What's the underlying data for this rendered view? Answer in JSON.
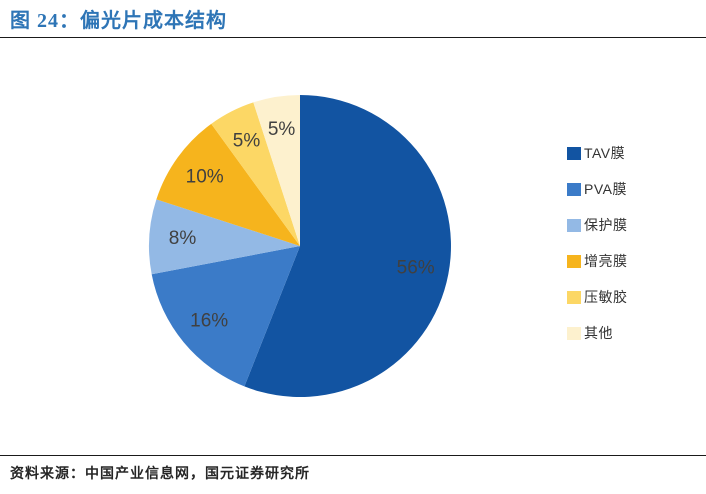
{
  "figure": {
    "title": "图 24：偏光片成本结构",
    "source": "资料来源：中国产业信息网，国元证券研究所"
  },
  "colors": {
    "title_text": "#2E75B6",
    "divider": "#1a1a1a",
    "slice_label_text": "#404040",
    "legend_text": "#333333"
  },
  "chart_data": {
    "type": "pie",
    "title": "偏光片成本结构",
    "categories": [
      "TAV膜",
      "PVA膜",
      "保护膜",
      "增亮膜",
      "压敏胶",
      "其他"
    ],
    "values": [
      56,
      16,
      8,
      10,
      5,
      5
    ],
    "labels": [
      "56%",
      "16%",
      "8%",
      "10%",
      "5%",
      "5%"
    ],
    "colors": [
      "#1254A2",
      "#3B7BC8",
      "#93B9E5",
      "#F6B41D",
      "#FCD765",
      "#FDF1CE"
    ],
    "start_angle_deg": 0,
    "direction": "clockwise",
    "legend_position": "right",
    "data_labels": "percent-inside"
  }
}
